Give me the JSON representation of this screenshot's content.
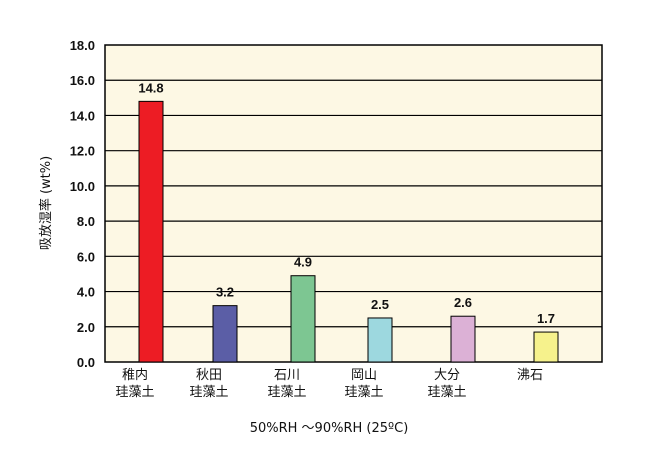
{
  "chart_data": {
    "type": "bar",
    "categories": [
      [
        "稚内",
        "珪藻土"
      ],
      [
        "秋田",
        "珪藻土"
      ],
      [
        "石川",
        "珪藻土"
      ],
      [
        "岡山",
        "珪藻土"
      ],
      [
        "大分",
        "珪藻土"
      ],
      [
        "沸石"
      ]
    ],
    "values": [
      14.8,
      3.2,
      4.9,
      2.5,
      2.6,
      1.7
    ],
    "data_labels": [
      "14.8",
      "3.2",
      "4.9",
      "2.5",
      "2.6",
      "1.7"
    ],
    "colors": [
      "#ed1c24",
      "#5b5ea6",
      "#7dc692",
      "#9dd8df",
      "#dcb1d6",
      "#f6f28c"
    ],
    "ylabel": "吸放湿率 (wt%)",
    "xlabel": "50%RH ～90%RH (25ºC)",
    "ylim": [
      0,
      18
    ],
    "yticks": [
      "0.0",
      "2.0",
      "4.0",
      "6.0",
      "8.0",
      "10.0",
      "12.0",
      "14.0",
      "16.0",
      "18.0"
    ],
    "plot_background": "#fdf8e4",
    "grid": true
  }
}
